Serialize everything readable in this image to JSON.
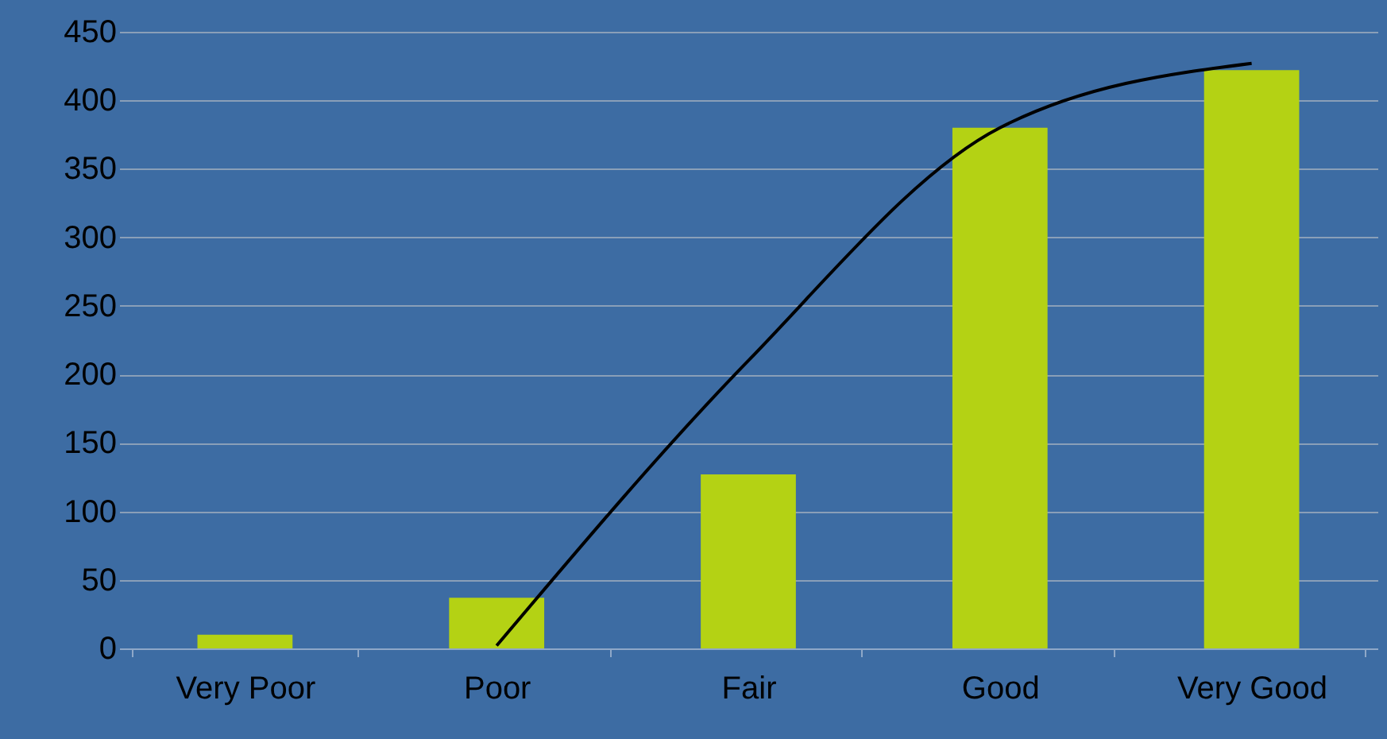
{
  "chart_data": {
    "type": "bar",
    "categories": [
      "Very Poor",
      "Poor",
      "Fair",
      "Good",
      "Very Good"
    ],
    "series": [
      {
        "color": "#b4d214",
        "values": [
          10,
          37,
          127,
          380,
          422
        ]
      },
      {
        "type": "line",
        "color": "#000000",
        "values": [
          null,
          2,
          210,
          380,
          427
        ]
      }
    ],
    "ylim": [
      0,
      450
    ],
    "yticks": [
      0,
      50,
      100,
      150,
      200,
      250,
      300,
      350,
      400,
      450
    ],
    "grid": "y",
    "marker": "none",
    "line_style": "solid"
  }
}
